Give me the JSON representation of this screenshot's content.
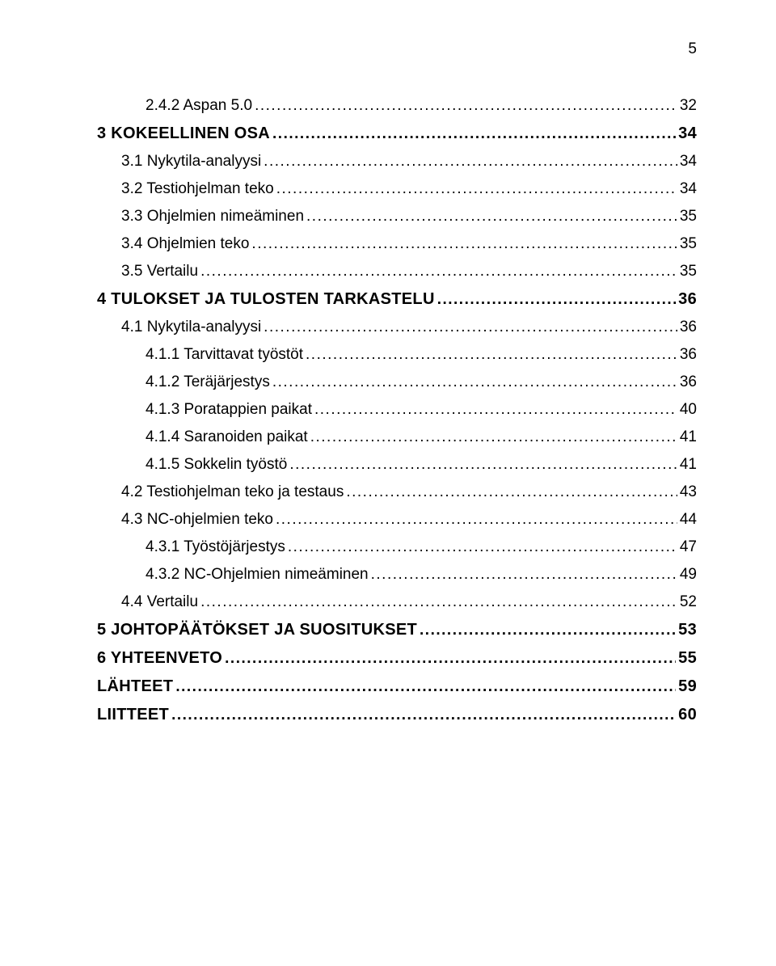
{
  "page_number": "5",
  "dot_fill": "....................................................................................................................................................................................................................",
  "toc": [
    {
      "level": 2,
      "label": "2.4.2  Aspan 5.0",
      "page": "32"
    },
    {
      "level": 0,
      "label": "3  KOKEELLINEN OSA",
      "page": "34"
    },
    {
      "level": 1,
      "label": "3.1  Nykytila-analyysi",
      "page": "34"
    },
    {
      "level": 1,
      "label": "3.2  Testiohjelman teko",
      "page": "34"
    },
    {
      "level": 1,
      "label": "3.3  Ohjelmien nimeäminen",
      "page": "35"
    },
    {
      "level": 1,
      "label": "3.4  Ohjelmien teko",
      "page": "35"
    },
    {
      "level": 1,
      "label": "3.5  Vertailu",
      "page": "35"
    },
    {
      "level": 0,
      "label": "4  TULOKSET JA TULOSTEN TARKASTELU",
      "page": "36"
    },
    {
      "level": 1,
      "label": "4.1  Nykytila-analyysi",
      "page": "36"
    },
    {
      "level": 2,
      "label": "4.1.1  Tarvittavat työstöt",
      "page": "36"
    },
    {
      "level": 2,
      "label": "4.1.2  Teräjärjestys",
      "page": "36"
    },
    {
      "level": 2,
      "label": "4.1.3  Poratappien paikat",
      "page": "40"
    },
    {
      "level": 2,
      "label": "4.1.4  Saranoiden paikat",
      "page": "41"
    },
    {
      "level": 2,
      "label": "4.1.5  Sokkelin työstö",
      "page": "41"
    },
    {
      "level": 1,
      "label": "4.2  Testiohjelman teko ja testaus",
      "page": "43"
    },
    {
      "level": 1,
      "label": "4.3  NC-ohjelmien teko",
      "page": "44"
    },
    {
      "level": 2,
      "label": "4.3.1  Työstöjärjestys",
      "page": "47"
    },
    {
      "level": 2,
      "label": "4.3.2  NC-Ohjelmien nimeäminen",
      "page": "49"
    },
    {
      "level": 1,
      "label": "4.4  Vertailu",
      "page": "52"
    },
    {
      "level": 0,
      "label": "5  JOHTOPÄÄTÖKSET JA SUOSITUKSET",
      "page": "53"
    },
    {
      "level": 0,
      "label": "6  YHTEENVETO",
      "page": "55"
    },
    {
      "level": 0,
      "label": "LÄHTEET",
      "page": "59"
    },
    {
      "level": 0,
      "label": "LIITTEET",
      "page": "60"
    }
  ]
}
